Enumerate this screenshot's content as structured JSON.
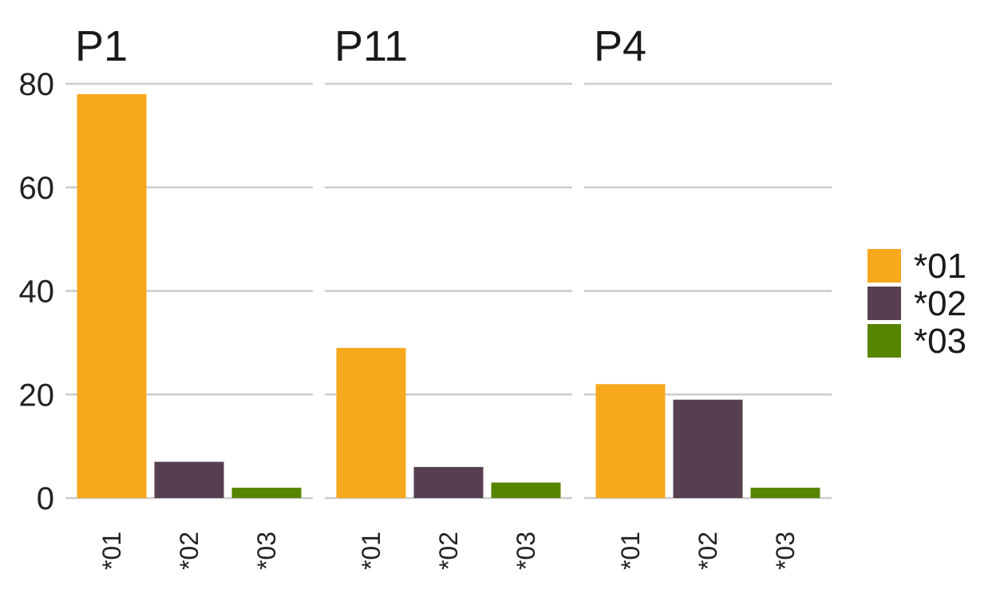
{
  "chart_data": {
    "type": "bar",
    "facets": [
      "P1",
      "P11",
      "P4"
    ],
    "categories": [
      "*01",
      "*02",
      "*03"
    ],
    "panels": [
      {
        "title": "P1",
        "values": [
          78,
          7,
          2
        ]
      },
      {
        "title": "P11",
        "values": [
          29,
          6,
          3
        ]
      },
      {
        "title": "P4",
        "values": [
          22,
          19,
          2
        ]
      }
    ],
    "ylim": [
      0,
      80
    ],
    "yticks": [
      0,
      20,
      40,
      60,
      80
    ],
    "grid": "horizontal",
    "legend": {
      "position": "right",
      "entries": [
        {
          "label": "*01",
          "color": "#F8A81C"
        },
        {
          "label": "*02",
          "color": "#553F51"
        },
        {
          "label": "*03",
          "color": "#578500"
        }
      ]
    },
    "xlabel": "",
    "ylabel": ""
  }
}
